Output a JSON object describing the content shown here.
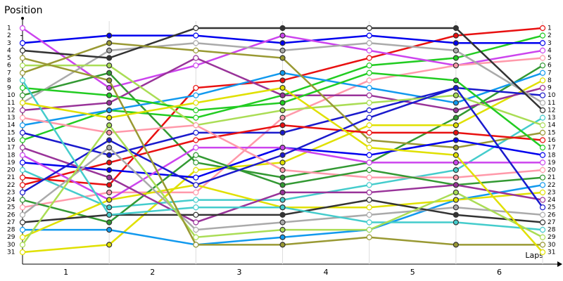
{
  "chart_data": {
    "type": "bump",
    "y_label": "Position",
    "x_label": "Laps",
    "x": [
      0,
      1,
      2,
      3,
      4,
      5,
      6
    ],
    "xlim": [
      0,
      6.17
    ],
    "xticks": [
      {
        "value": 0.5,
        "label": "1"
      },
      {
        "value": 1.5,
        "label": "2"
      },
      {
        "value": 2.5,
        "label": "3"
      },
      {
        "value": 3.5,
        "label": "4"
      },
      {
        "value": 4.5,
        "label": "5"
      },
      {
        "value": 5.5,
        "label": "6"
      }
    ],
    "ylim": [
      31,
      1
    ],
    "yticks": [
      1,
      2,
      3,
      4,
      5,
      6,
      7,
      8,
      9,
      10,
      11,
      12,
      13,
      14,
      15,
      16,
      17,
      18,
      19,
      20,
      21,
      22,
      23,
      24,
      25,
      26,
      27,
      28,
      29,
      30,
      31
    ],
    "series": [
      {
        "color": "#e81010",
        "values": [
          21,
          22,
          9,
          8,
          5,
          2,
          1
        ]
      },
      {
        "color": "#22cc22",
        "values": [
          16,
          12,
          13,
          10,
          6,
          5,
          2
        ]
      },
      {
        "color": "#0000ee",
        "values": [
          3,
          2,
          2,
          3,
          2,
          3,
          3
        ]
      },
      {
        "color": "#cc44ee",
        "values": [
          1,
          9,
          6,
          2,
          4,
          6,
          4
        ]
      },
      {
        "color": "#ff99aa",
        "values": [
          25,
          23,
          23,
          13,
          8,
          6,
          5
        ]
      },
      {
        "color": "#339933",
        "values": [
          10,
          7,
          19,
          21,
          19,
          13,
          6
        ]
      },
      {
        "color": "#1199ee",
        "values": [
          14,
          12,
          10,
          7,
          9,
          11,
          7
        ]
      },
      {
        "color": "#e0e000",
        "values": [
          31,
          30,
          20,
          19,
          14,
          14,
          8
        ]
      },
      {
        "color": "#993399",
        "values": [
          12,
          11,
          5,
          10,
          10,
          12,
          9
        ]
      },
      {
        "color": "#1a1acc",
        "values": [
          15,
          18,
          15,
          15,
          12,
          9,
          10
        ]
      },
      {
        "color": "#aaaaaa",
        "values": [
          11,
          4,
          3,
          4,
          3,
          4,
          11
        ]
      },
      {
        "color": "#333333",
        "values": [
          4,
          5,
          1,
          1,
          1,
          1,
          12
        ]
      },
      {
        "color": "#44cccc",
        "values": [
          20,
          25,
          24,
          24,
          22,
          20,
          13
        ]
      },
      {
        "color": "#aadd55",
        "values": [
          6,
          6,
          14,
          12,
          11,
          10,
          14
        ]
      },
      {
        "color": "#999933",
        "values": [
          7,
          3,
          4,
          5,
          16,
          17,
          15
        ]
      },
      {
        "color": "#e81010",
        "values": [
          22,
          19,
          16,
          14,
          15,
          15,
          16
        ]
      },
      {
        "color": "#22cc22",
        "values": [
          9,
          10,
          12,
          11,
          7,
          8,
          17
        ]
      },
      {
        "color": "#0000ee",
        "values": [
          19,
          20,
          21,
          17,
          18,
          16,
          18
        ]
      },
      {
        "color": "#cc44ee",
        "values": [
          18,
          24,
          17,
          17,
          19,
          19,
          19
        ]
      },
      {
        "color": "#ff99aa",
        "values": [
          13,
          15,
          14,
          20,
          21,
          21,
          20
        ]
      },
      {
        "color": "#339933",
        "values": [
          24,
          27,
          18,
          22,
          20,
          22,
          21
        ]
      },
      {
        "color": "#1199ee",
        "values": [
          28,
          28,
          30,
          29,
          28,
          24,
          22
        ]
      },
      {
        "color": "#e0e000",
        "values": [
          29,
          24,
          22,
          25,
          25,
          24,
          23
        ]
      },
      {
        "color": "#993399",
        "values": [
          17,
          21,
          27,
          23,
          23,
          22,
          24
        ]
      },
      {
        "color": "#1a1acc",
        "values": [
          23,
          16,
          22,
          18,
          13,
          9,
          25
        ]
      },
      {
        "color": "#aaaaaa",
        "values": [
          26,
          17,
          28,
          27,
          26,
          25,
          26
        ]
      },
      {
        "color": "#333333",
        "values": [
          27,
          26,
          26,
          26,
          24,
          26,
          27
        ]
      },
      {
        "color": "#44cccc",
        "values": [
          8,
          26,
          25,
          25,
          27,
          27,
          28
        ]
      },
      {
        "color": "#aadd55",
        "values": [
          30,
          14,
          29,
          28,
          28,
          23,
          29
        ]
      },
      {
        "color": "#999933",
        "values": [
          5,
          8,
          30,
          30,
          29,
          30,
          30
        ]
      },
      {
        "color": "#e0e000",
        "values": [
          11,
          13,
          11,
          9,
          17,
          18,
          31
        ]
      }
    ]
  }
}
